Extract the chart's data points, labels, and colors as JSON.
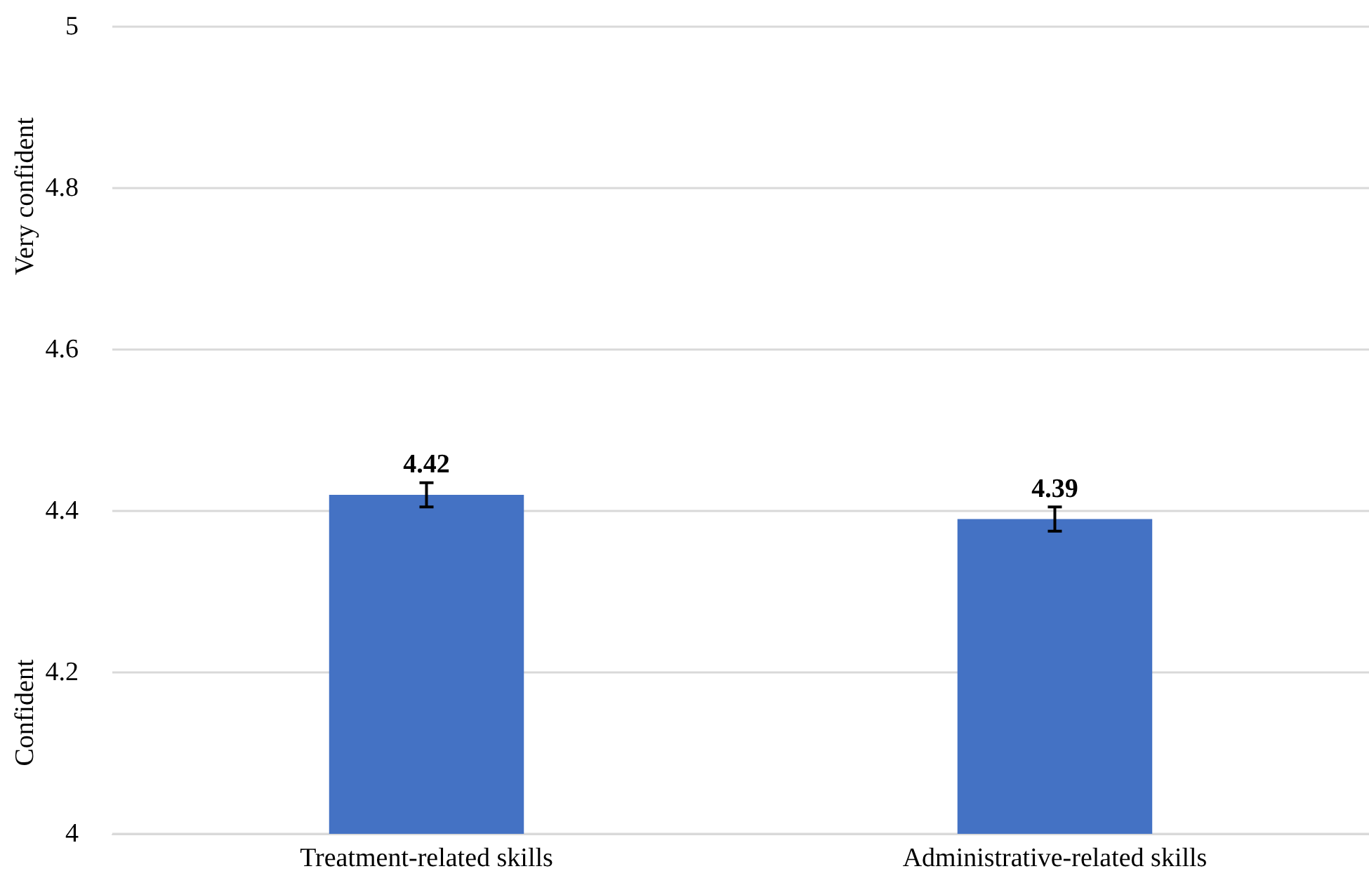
{
  "chart_data": {
    "type": "bar",
    "categories": [
      "Treatment-related skills",
      "Administrative-related skills"
    ],
    "values": [
      4.42,
      4.39
    ],
    "errors": [
      0.015,
      0.015
    ],
    "color": "#4472c4",
    "data_labels": true,
    "ylim": [
      4,
      5
    ],
    "yticks": [
      4,
      4.2,
      4.4,
      4.6,
      4.8,
      5
    ],
    "grid": "y",
    "annotations": [
      "Very confident",
      "Confident"
    ]
  }
}
